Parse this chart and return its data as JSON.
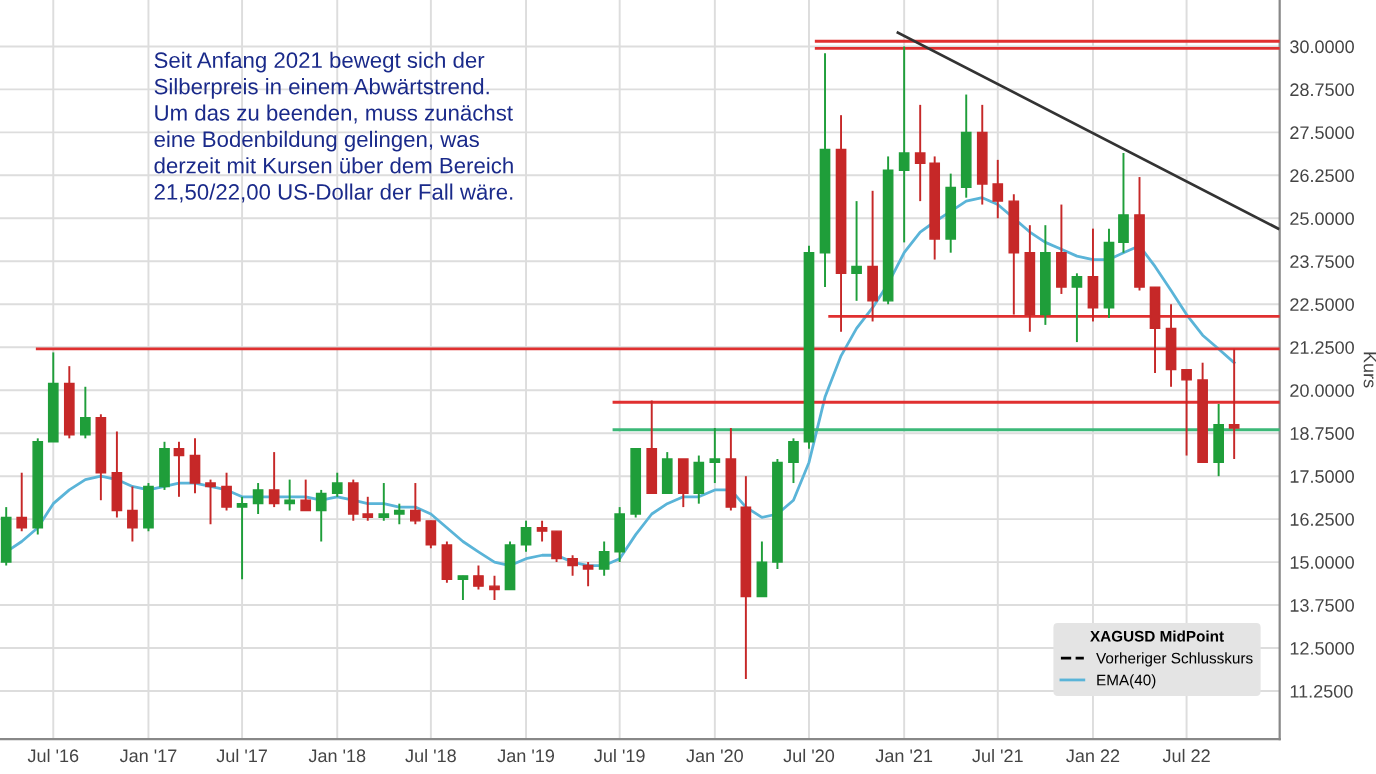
{
  "chart_data": {
    "type": "candlestick",
    "annotations": [
      "Seit Anfang 2021 bewegt sich der\nSilberpreis in einem Abwärtstrend.\nUm das zu beenden, muss zunächst\neine Bodenbildung gelingen, was\nderzeit mit Kursen über dem Bereich\n21,50/22,00 US-Dollar der Fall wäre."
    ],
    "ylabel": "Kurs",
    "legend_title": "XAGUSD MidPoint",
    "x": [
      "2016-04",
      "2016-05",
      "2016-06",
      "2016-07",
      "2016-08",
      "2016-09",
      "2016-10",
      "2016-11",
      "2016-12",
      "2017-01",
      "2017-02",
      "2017-03",
      "2017-04",
      "2017-05",
      "2017-06",
      "2017-07",
      "2017-08",
      "2017-09",
      "2017-10",
      "2017-11",
      "2017-12",
      "2018-01",
      "2018-02",
      "2018-03",
      "2018-04",
      "2018-05",
      "2018-06",
      "2018-07",
      "2018-08",
      "2018-09",
      "2018-10",
      "2018-11",
      "2018-12",
      "2019-01",
      "2019-02",
      "2019-03",
      "2019-04",
      "2019-05",
      "2019-06",
      "2019-07",
      "2019-08",
      "2019-09",
      "2019-10",
      "2019-11",
      "2019-12",
      "2020-01",
      "2020-02",
      "2020-03",
      "2020-04",
      "2020-05",
      "2020-06",
      "2020-07",
      "2020-08",
      "2020-09",
      "2020-10",
      "2020-11",
      "2020-12",
      "2021-01",
      "2021-02",
      "2021-03",
      "2021-04",
      "2021-05",
      "2021-06",
      "2021-07",
      "2021-08",
      "2021-09",
      "2021-10",
      "2021-11",
      "2021-12",
      "2022-01",
      "2022-02",
      "2022-03",
      "2022-04",
      "2022-05",
      "2022-06",
      "2022-07",
      "2022-08",
      "2022-09",
      "2022-10"
    ],
    "ohlc": [
      [
        15.0,
        16.6,
        14.9,
        16.3
      ],
      [
        16.3,
        17.6,
        15.9,
        16.0
      ],
      [
        16.0,
        18.6,
        15.8,
        18.5
      ],
      [
        18.5,
        21.1,
        18.5,
        20.2
      ],
      [
        20.2,
        20.7,
        18.6,
        18.7
      ],
      [
        18.7,
        20.1,
        18.6,
        19.2
      ],
      [
        19.2,
        19.3,
        16.8,
        17.6
      ],
      [
        17.6,
        18.8,
        16.3,
        16.5
      ],
      [
        16.5,
        17.2,
        15.6,
        16.0
      ],
      [
        16.0,
        17.3,
        15.9,
        17.2
      ],
      [
        17.2,
        18.5,
        17.1,
        18.3
      ],
      [
        18.3,
        18.5,
        16.9,
        18.1
      ],
      [
        18.1,
        18.6,
        17.0,
        17.3
      ],
      [
        17.3,
        17.4,
        16.1,
        17.2
      ],
      [
        17.2,
        17.6,
        16.5,
        16.6
      ],
      [
        16.6,
        16.9,
        14.5,
        16.7
      ],
      [
        16.7,
        17.3,
        16.4,
        17.1
      ],
      [
        17.1,
        18.2,
        16.6,
        16.7
      ],
      [
        16.7,
        17.4,
        16.5,
        16.8
      ],
      [
        16.8,
        17.4,
        16.5,
        16.5
      ],
      [
        16.5,
        17.1,
        15.6,
        17.0
      ],
      [
        17.0,
        17.6,
        16.9,
        17.3
      ],
      [
        17.3,
        17.4,
        16.2,
        16.4
      ],
      [
        16.4,
        16.9,
        16.2,
        16.3
      ],
      [
        16.3,
        17.3,
        16.2,
        16.4
      ],
      [
        16.4,
        16.7,
        16.1,
        16.5
      ],
      [
        16.5,
        17.3,
        16.1,
        16.2
      ],
      [
        16.2,
        16.2,
        15.4,
        15.5
      ],
      [
        15.5,
        15.6,
        14.4,
        14.5
      ],
      [
        14.5,
        14.6,
        13.9,
        14.6
      ],
      [
        14.6,
        14.9,
        14.2,
        14.3
      ],
      [
        14.3,
        14.6,
        13.9,
        14.2
      ],
      [
        14.2,
        15.6,
        14.2,
        15.5
      ],
      [
        15.5,
        16.2,
        15.3,
        16.0
      ],
      [
        16.0,
        16.2,
        15.6,
        15.9
      ],
      [
        15.9,
        15.9,
        15.0,
        15.1
      ],
      [
        15.1,
        15.2,
        14.6,
        14.9
      ],
      [
        14.9,
        15.0,
        14.3,
        14.8
      ],
      [
        14.8,
        15.6,
        14.6,
        15.3
      ],
      [
        15.3,
        16.6,
        15.0,
        16.4
      ],
      [
        16.4,
        18.3,
        16.3,
        18.3
      ],
      [
        18.3,
        19.7,
        17.0,
        17.0
      ],
      [
        17.0,
        18.2,
        17.0,
        18.0
      ],
      [
        18.0,
        18.0,
        16.6,
        17.0
      ],
      [
        17.0,
        18.1,
        16.7,
        17.9
      ],
      [
        17.9,
        18.9,
        17.3,
        18.0
      ],
      [
        18.0,
        18.9,
        16.5,
        16.6
      ],
      [
        16.6,
        17.5,
        11.6,
        14.0
      ],
      [
        14.0,
        15.6,
        14.0,
        15.0
      ],
      [
        15.0,
        18.0,
        14.8,
        17.9
      ],
      [
        17.9,
        18.6,
        17.3,
        18.5
      ],
      [
        18.5,
        24.2,
        18.3,
        24.0
      ],
      [
        24.0,
        29.8,
        23.0,
        27.0
      ],
      [
        27.0,
        28.0,
        21.7,
        23.4
      ],
      [
        23.4,
        25.5,
        22.6,
        23.6
      ],
      [
        23.6,
        25.8,
        22.0,
        22.6
      ],
      [
        22.6,
        26.8,
        22.5,
        26.4
      ],
      [
        26.4,
        30.0,
        24.3,
        26.9
      ],
      [
        26.9,
        28.3,
        25.5,
        26.6
      ],
      [
        26.6,
        26.8,
        23.8,
        24.4
      ],
      [
        24.4,
        26.3,
        24.0,
        25.9
      ],
      [
        25.9,
        28.6,
        25.6,
        27.5
      ],
      [
        27.5,
        28.3,
        25.4,
        26.0
      ],
      [
        26.0,
        26.7,
        25.0,
        25.5
      ],
      [
        25.5,
        25.7,
        22.2,
        24.0
      ],
      [
        24.0,
        24.8,
        21.7,
        22.2
      ],
      [
        22.2,
        24.8,
        21.9,
        24.0
      ],
      [
        24.0,
        25.4,
        22.8,
        23.0
      ],
      [
        23.0,
        23.4,
        21.4,
        23.3
      ],
      [
        23.3,
        24.7,
        22.0,
        22.4
      ],
      [
        22.4,
        24.7,
        22.1,
        24.3
      ],
      [
        24.3,
        26.9,
        24.0,
        25.1
      ],
      [
        25.1,
        26.2,
        22.9,
        23.0
      ],
      [
        23.0,
        23.0,
        20.5,
        21.8
      ],
      [
        21.8,
        22.5,
        20.1,
        20.6
      ],
      [
        20.6,
        20.6,
        18.1,
        20.3
      ],
      [
        20.3,
        20.8,
        17.9,
        17.9
      ],
      [
        17.9,
        19.6,
        17.5,
        19.0
      ],
      [
        19.0,
        21.2,
        18.0,
        18.9
      ]
    ],
    "colors": [
      "#1f9e3a",
      "#c62828",
      "#1f9e3a",
      "#1f9e3a",
      "#c62828",
      "#1f9e3a",
      "#c62828",
      "#c62828",
      "#c62828",
      "#1f9e3a",
      "#1f9e3a",
      "#c62828",
      "#c62828",
      "#c62828",
      "#c62828",
      "#1f9e3a",
      "#1f9e3a",
      "#c62828",
      "#1f9e3a",
      "#c62828",
      "#1f9e3a",
      "#1f9e3a",
      "#c62828",
      "#c62828",
      "#1f9e3a",
      "#1f9e3a",
      "#c62828",
      "#c62828",
      "#c62828",
      "#1f9e3a",
      "#c62828",
      "#c62828",
      "#1f9e3a",
      "#1f9e3a",
      "#c62828",
      "#c62828",
      "#c62828",
      "#c62828",
      "#1f9e3a",
      "#1f9e3a",
      "#1f9e3a",
      "#c62828",
      "#1f9e3a",
      "#c62828",
      "#1f9e3a",
      "#1f9e3a",
      "#c62828",
      "#c62828",
      "#1f9e3a",
      "#1f9e3a",
      "#1f9e3a",
      "#1f9e3a",
      "#1f9e3a",
      "#c62828",
      "#1f9e3a",
      "#c62828",
      "#1f9e3a",
      "#1f9e3a",
      "#c62828",
      "#c62828",
      "#1f9e3a",
      "#1f9e3a",
      "#c62828",
      "#c62828",
      "#c62828",
      "#c62828",
      "#1f9e3a",
      "#c62828",
      "#1f9e3a",
      "#c62828",
      "#1f9e3a",
      "#1f9e3a",
      "#c62828",
      "#c62828",
      "#c62828",
      "#c62828",
      "#c62828",
      "#1f9e3a",
      "#c62828"
    ],
    "series": [
      {
        "type": "line",
        "name": "Vorheriger Schlusskurs",
        "color": "#000000",
        "line_style": "dashed",
        "values": [
          null,
          null,
          null,
          null,
          null,
          null,
          null,
          null,
          null,
          null,
          null,
          null,
          null,
          null,
          null,
          null,
          null,
          null,
          null,
          null,
          null,
          null,
          null,
          null,
          null,
          null,
          null,
          null,
          null,
          null,
          null,
          null,
          null,
          null,
          null,
          null,
          null,
          null,
          null,
          null,
          null,
          null,
          null,
          null,
          null,
          null,
          null,
          null,
          null,
          null,
          null,
          null,
          null,
          null,
          null,
          null,
          null,
          null,
          null,
          null,
          null,
          null,
          null,
          null,
          null,
          null,
          null,
          null,
          null,
          null,
          null,
          null,
          null,
          null,
          null,
          null,
          null,
          null,
          null
        ]
      },
      {
        "type": "line",
        "name": "EMA(40)",
        "color": "#5ab4d8",
        "x": [
          "2016-04",
          "2016-05",
          "2016-06",
          "2016-07",
          "2016-08",
          "2016-09",
          "2016-10",
          "2016-11",
          "2016-12",
          "2017-01",
          "2017-02",
          "2017-03",
          "2017-04",
          "2017-05",
          "2017-06",
          "2017-07",
          "2017-08",
          "2017-09",
          "2017-10",
          "2017-11",
          "2017-12",
          "2018-01",
          "2018-02",
          "2018-03",
          "2018-04",
          "2018-05",
          "2018-06",
          "2018-07",
          "2018-08",
          "2018-09",
          "2018-10",
          "2018-11",
          "2018-12",
          "2019-01",
          "2019-02",
          "2019-03",
          "2019-04",
          "2019-05",
          "2019-06",
          "2019-07",
          "2019-08",
          "2019-09",
          "2019-10",
          "2019-11",
          "2019-12",
          "2020-01",
          "2020-02",
          "2020-03",
          "2020-04",
          "2020-05",
          "2020-06",
          "2020-07",
          "2020-08",
          "2020-09",
          "2020-10",
          "2020-11",
          "2020-12",
          "2021-01",
          "2021-02",
          "2021-03",
          "2021-04",
          "2021-05",
          "2021-06",
          "2021-07",
          "2021-08",
          "2021-09",
          "2021-10",
          "2021-11",
          "2021-12",
          "2022-01",
          "2022-02",
          "2022-03",
          "2022-04",
          "2022-05",
          "2022-06",
          "2022-07",
          "2022-08",
          "2022-09",
          "2022-10"
        ],
        "values": [
          15.3,
          15.6,
          16.0,
          16.7,
          17.1,
          17.4,
          17.5,
          17.4,
          17.2,
          17.1,
          17.2,
          17.3,
          17.3,
          17.2,
          17.1,
          16.9,
          16.9,
          16.9,
          16.9,
          16.9,
          16.8,
          16.9,
          16.8,
          16.7,
          16.7,
          16.6,
          16.6,
          16.4,
          16.0,
          15.6,
          15.3,
          15.0,
          14.9,
          15.1,
          15.2,
          15.2,
          15.0,
          14.9,
          14.9,
          15.1,
          15.8,
          16.4,
          16.7,
          16.9,
          16.9,
          17.1,
          17.1,
          16.6,
          16.3,
          16.4,
          16.8,
          17.9,
          19.8,
          21.0,
          21.8,
          22.4,
          23.1,
          24.0,
          24.6,
          24.9,
          25.2,
          25.5,
          25.6,
          25.4,
          25.0,
          24.6,
          24.3,
          24.1,
          23.9,
          23.8,
          23.8,
          24.0,
          24.2,
          23.6,
          22.9,
          22.2,
          21.6,
          21.2,
          20.8
        ]
      },
      {
        "type": "line",
        "color": "#e03030",
        "x": [
          "2020-07-15",
          "2022-12-28"
        ],
        "values": [
          30.15,
          30.15
        ]
      },
      {
        "type": "line",
        "color": "#e03030",
        "x": [
          "2020-07-15",
          "2022-12-28"
        ],
        "values": [
          29.94,
          29.94
        ]
      },
      {
        "type": "line",
        "color": "#e03030",
        "x": [
          "2020-08-10",
          "2022-12-28"
        ],
        "values": [
          22.15,
          22.15
        ]
      },
      {
        "type": "line",
        "color": "#e03030",
        "x": [
          "2016-05-31",
          "2022-12-28"
        ],
        "values": [
          21.2,
          21.2
        ]
      },
      {
        "type": "line",
        "color": "#e03030",
        "x": [
          "2019-06-20",
          "2022-12-28"
        ],
        "values": [
          19.65,
          19.65
        ]
      },
      {
        "type": "line",
        "color": "#3cb878",
        "x": [
          "2019-06-20",
          "2022-12-28"
        ],
        "values": [
          18.85,
          18.85
        ]
      },
      {
        "type": "line",
        "color": "#333333",
        "x": [
          "2020-12-20",
          "2022-12-25"
        ],
        "values": [
          30.4,
          24.7
        ]
      }
    ],
    "xlim": [
      "2016-03-20",
      "2022-12-28"
    ],
    "xticks": [
      {
        "value": "2016-07-01",
        "label": "Jul '16"
      },
      {
        "value": "2017-01-01",
        "label": "Jan '17"
      },
      {
        "value": "2017-07-01",
        "label": "Jul '17"
      },
      {
        "value": "2018-01-01",
        "label": "Jan '18"
      },
      {
        "value": "2018-07-01",
        "label": "Jul '18"
      },
      {
        "value": "2019-01-01",
        "label": "Jan '19"
      },
      {
        "value": "2019-07-01",
        "label": "Jul '19"
      },
      {
        "value": "2020-01-01",
        "label": "Jan '20"
      },
      {
        "value": "2020-07-01",
        "label": "Jul '20"
      },
      {
        "value": "2021-01-01",
        "label": "Jan '21"
      },
      {
        "value": "2021-07-01",
        "label": "Jul '21"
      },
      {
        "value": "2022-01-01",
        "label": "Jan 22"
      },
      {
        "value": "2022-07-01",
        "label": "Jul 22"
      }
    ],
    "ylim": [
      9.85,
      31.35
    ],
    "yticks": [
      {
        "value": 11.25,
        "label": "11.2500"
      },
      {
        "value": 12.5,
        "label": "12.5000"
      },
      {
        "value": 13.75,
        "label": "13.7500"
      },
      {
        "value": 15,
        "label": "15.0000"
      },
      {
        "value": 16.25,
        "label": "16.2500"
      },
      {
        "value": 17.5,
        "label": "17.5000"
      },
      {
        "value": 18.75,
        "label": "18.7500"
      },
      {
        "value": 20,
        "label": "20.0000"
      },
      {
        "value": 21.25,
        "label": "21.2500"
      },
      {
        "value": 22.5,
        "label": "22.5000"
      },
      {
        "value": 23.75,
        "label": "23.7500"
      },
      {
        "value": 25,
        "label": "25.0000"
      },
      {
        "value": 26.25,
        "label": "26.2500"
      },
      {
        "value": 27.5,
        "label": "27.5000"
      },
      {
        "value": 28.75,
        "label": "28.7500"
      },
      {
        "value": 30,
        "label": "30.0000"
      }
    ],
    "grid": true,
    "legend": "bottom right"
  }
}
